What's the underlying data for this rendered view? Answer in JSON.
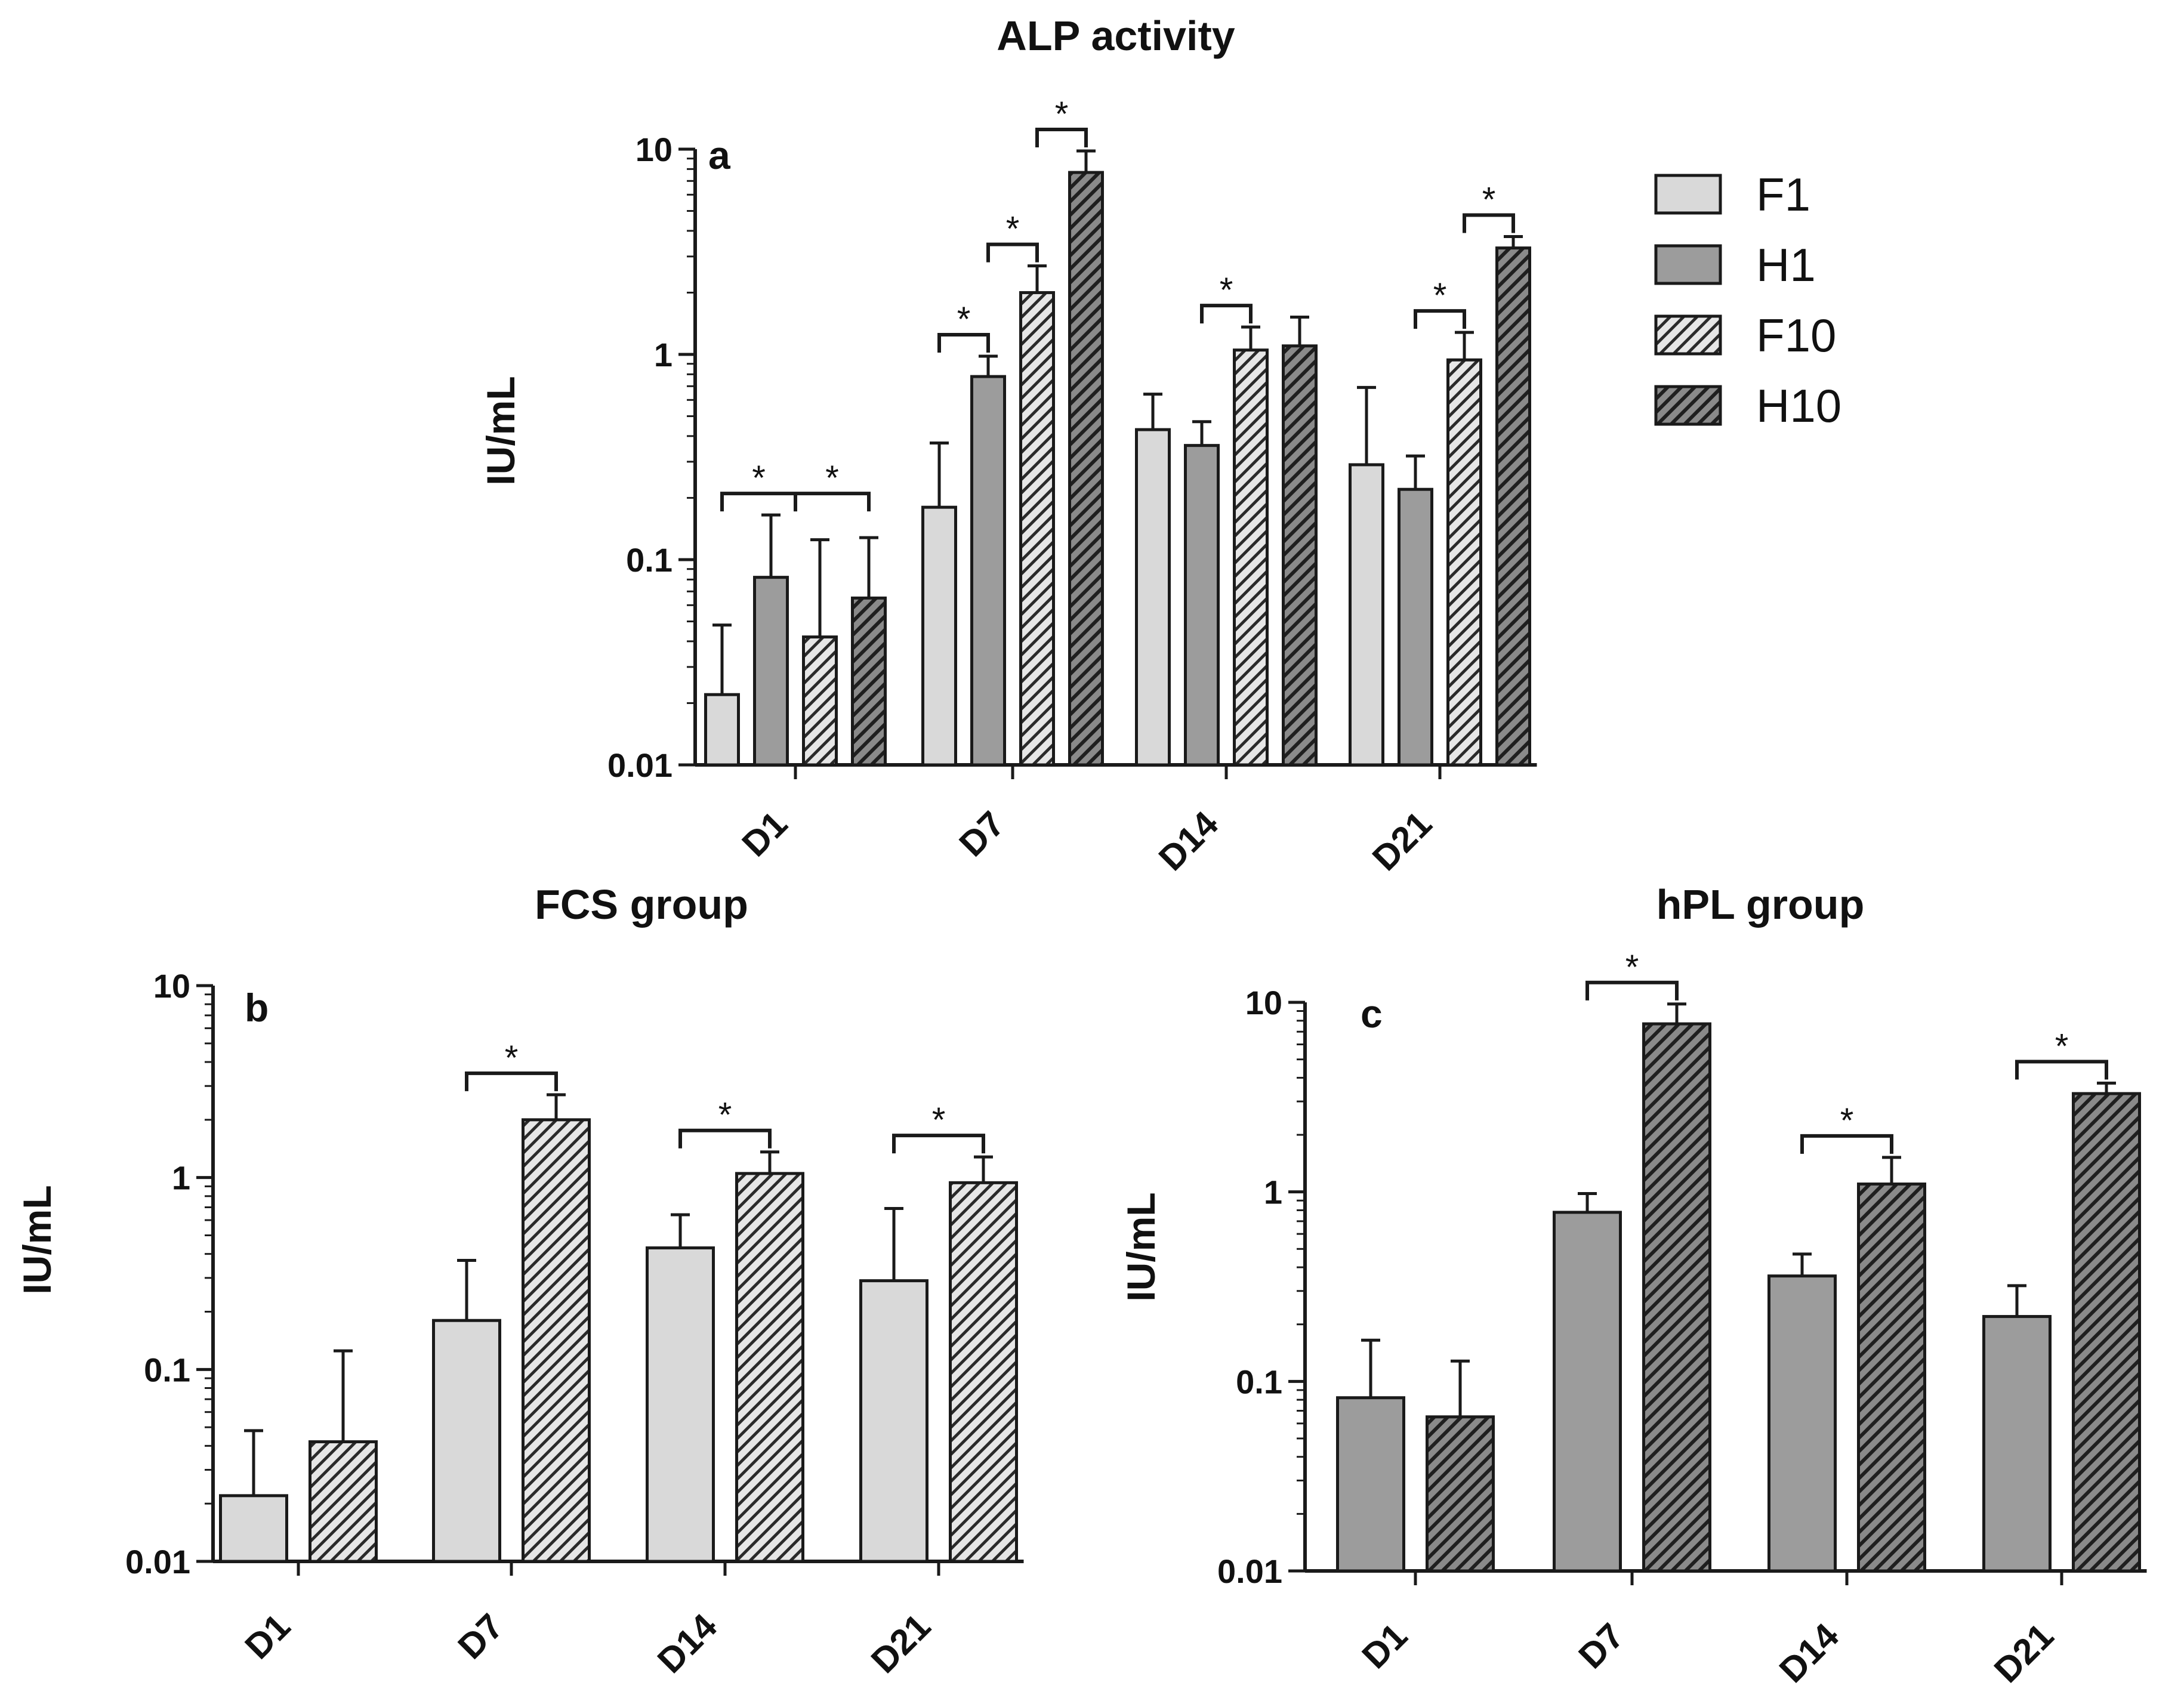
{
  "colors": {
    "F1": "#d9d9d9",
    "H1": "#9c9c9c",
    "F10": "#e0e0e0",
    "H10": "#8a8a8a",
    "stroke": "#1a1a1a"
  },
  "legend": {
    "items": [
      {
        "key": "F1",
        "label": "F1",
        "pattern": "solid-light"
      },
      {
        "key": "H1",
        "label": "H1",
        "pattern": "solid-dark"
      },
      {
        "key": "F10",
        "label": "F10",
        "pattern": "hatch-light"
      },
      {
        "key": "H10",
        "label": "H10",
        "pattern": "hatch-dark"
      }
    ]
  },
  "chart_data": [
    {
      "panel": "a",
      "title": "ALP activity",
      "type": "bar",
      "ylabel": "IU/mL",
      "yscale": "log",
      "ylim": [
        0.01,
        10
      ],
      "yticks": [
        "0.01",
        "0.1",
        "1",
        "10"
      ],
      "categories": [
        "D1",
        "D7",
        "D14",
        "D21"
      ],
      "series": [
        {
          "name": "F1",
          "values": [
            0.022,
            0.18,
            0.43,
            0.29
          ],
          "err_upper": [
            0.048,
            0.37,
            0.64,
            0.69
          ]
        },
        {
          "name": "H1",
          "values": [
            0.082,
            0.78,
            0.36,
            0.22
          ],
          "err_upper": [
            0.165,
            0.98,
            0.47,
            0.32
          ]
        },
        {
          "name": "F10",
          "values": [
            0.042,
            2.0,
            1.05,
            0.94
          ],
          "err_upper": [
            0.125,
            2.7,
            1.36,
            1.28
          ]
        },
        {
          "name": "H10",
          "values": [
            0.065,
            7.7,
            1.1,
            3.3
          ],
          "err_upper": [
            0.128,
            9.8,
            1.52,
            3.75
          ]
        }
      ],
      "significance": [
        {
          "category": "D1",
          "from": "F1",
          "to": "H10",
          "stars": [
            "*",
            "*"
          ]
        },
        {
          "category": "D7",
          "from": "F1",
          "to": "H1",
          "stars": [
            "*"
          ]
        },
        {
          "category": "D7",
          "from": "H1",
          "to": "F10",
          "stars": [
            "*"
          ]
        },
        {
          "category": "D7",
          "from": "F10",
          "to": "H10",
          "stars": [
            "*"
          ]
        },
        {
          "category": "D14",
          "from": "H1",
          "to": "F10",
          "stars": [
            "*"
          ]
        },
        {
          "category": "D21",
          "from": "H1",
          "to": "F10",
          "stars": [
            "*"
          ]
        },
        {
          "category": "D21",
          "from": "F10",
          "to": "H10",
          "stars": [
            "*"
          ]
        }
      ]
    },
    {
      "panel": "b",
      "title": "FCS group",
      "type": "bar",
      "ylabel": "IU/mL",
      "yscale": "log",
      "ylim": [
        0.01,
        10
      ],
      "yticks": [
        "0.01",
        "0.1",
        "1",
        "10"
      ],
      "categories": [
        "D1",
        "D7",
        "D14",
        "D21"
      ],
      "series": [
        {
          "name": "F1",
          "values": [
            0.022,
            0.18,
            0.43,
            0.29
          ],
          "err_upper": [
            0.048,
            0.37,
            0.64,
            0.69
          ]
        },
        {
          "name": "F10",
          "values": [
            0.042,
            2.0,
            1.05,
            0.94
          ],
          "err_upper": [
            0.125,
            2.7,
            1.36,
            1.28
          ]
        }
      ],
      "significance": [
        {
          "category": "D7",
          "from": "F1",
          "to": "F10",
          "stars": [
            "*"
          ]
        },
        {
          "category": "D14",
          "from": "F1",
          "to": "F10",
          "stars": [
            "*"
          ]
        },
        {
          "category": "D21",
          "from": "F1",
          "to": "F10",
          "stars": [
            "*"
          ]
        }
      ]
    },
    {
      "panel": "c",
      "title": "hPL group",
      "type": "bar",
      "ylabel": "IU/mL",
      "yscale": "log",
      "ylim": [
        0.01,
        10
      ],
      "yticks": [
        "0.01",
        "0.1",
        "1",
        "10"
      ],
      "categories": [
        "D1",
        "D7",
        "D14",
        "D21"
      ],
      "series": [
        {
          "name": "H1",
          "values": [
            0.082,
            0.78,
            0.36,
            0.22
          ],
          "err_upper": [
            0.165,
            0.98,
            0.47,
            0.32
          ]
        },
        {
          "name": "H10",
          "values": [
            0.065,
            7.7,
            1.1,
            3.3
          ],
          "err_upper": [
            0.128,
            9.8,
            1.52,
            3.75
          ]
        }
      ],
      "significance": [
        {
          "category": "D7",
          "from": "H1",
          "to": "H10",
          "stars": [
            "*"
          ]
        },
        {
          "category": "D14",
          "from": "H1",
          "to": "H10",
          "stars": [
            "*"
          ]
        },
        {
          "category": "D21",
          "from": "H1",
          "to": "H10",
          "stars": [
            "*"
          ]
        }
      ]
    }
  ]
}
